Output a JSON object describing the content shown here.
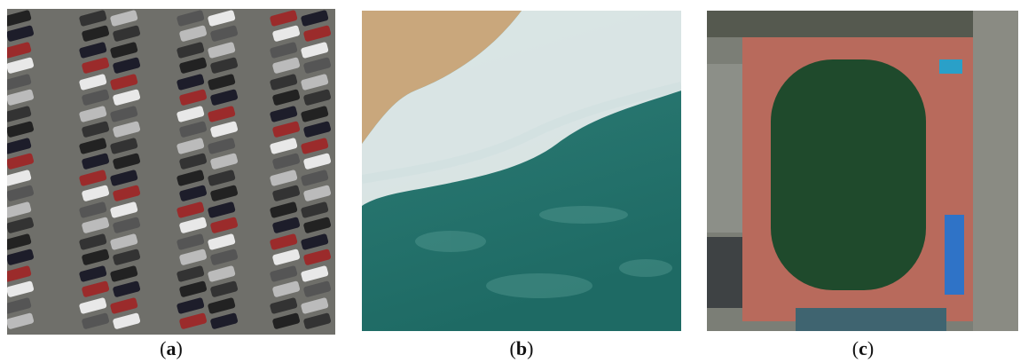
{
  "panels": [
    {
      "caption": {
        "open": "(",
        "letter": "a",
        "close": ")"
      }
    },
    {
      "caption": {
        "open": "(",
        "letter": "b",
        "close": ")"
      }
    },
    {
      "caption": {
        "open": "(",
        "letter": "c",
        "close": ")"
      }
    }
  ]
}
